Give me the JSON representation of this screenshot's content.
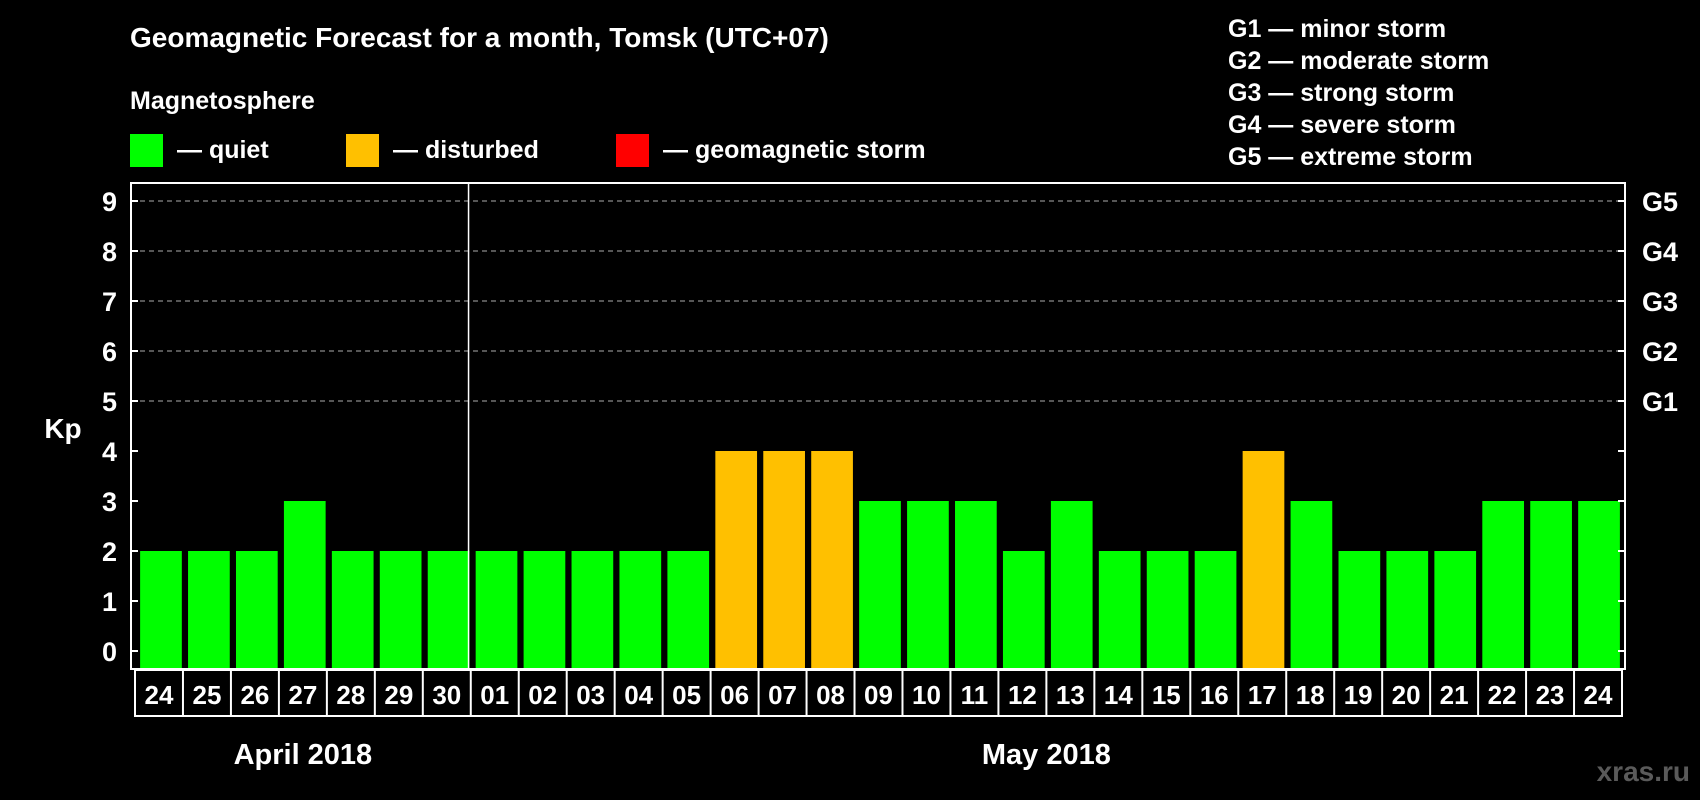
{
  "colors": {
    "background": "#000000",
    "quiet": "#00ff00",
    "disturbed": "#ffc000",
    "storm": "#ff0000",
    "text": "#ffffff",
    "watermark": "#5a5a5a"
  },
  "legend": {
    "heading": "Magnetosphere",
    "items": [
      {
        "label": "— quiet",
        "level": "quiet"
      },
      {
        "label": "— disturbed",
        "level": "disturbed"
      },
      {
        "label": "— geomagnetic storm",
        "level": "storm"
      }
    ]
  },
  "storm_scale": [
    "G1 — minor storm",
    "G2 — moderate storm",
    "G3 — strong storm",
    "G4 — severe storm",
    "G5 — extreme storm"
  ],
  "watermark": "xras.ru",
  "chart_data": {
    "type": "bar",
    "title": "Geomagnetic Forecast for a month, Tomsk (UTC+07)",
    "ylabel": "Kp",
    "ylim": [
      0,
      9
    ],
    "y_ticks": [
      "0",
      "1",
      "2",
      "3",
      "4",
      "5",
      "6",
      "7",
      "8",
      "9"
    ],
    "right_axis": [
      {
        "kp": 5,
        "label": "G1"
      },
      {
        "kp": 6,
        "label": "G2"
      },
      {
        "kp": 7,
        "label": "G3"
      },
      {
        "kp": 8,
        "label": "G4"
      },
      {
        "kp": 9,
        "label": "G5"
      }
    ],
    "grid": "dashed at Kp 5-9",
    "categories": [
      "24",
      "25",
      "26",
      "27",
      "28",
      "29",
      "30",
      "01",
      "02",
      "03",
      "04",
      "05",
      "06",
      "07",
      "08",
      "09",
      "10",
      "11",
      "12",
      "13",
      "14",
      "15",
      "16",
      "17",
      "18",
      "19",
      "20",
      "21",
      "22",
      "23",
      "24"
    ],
    "values": [
      2,
      2,
      2,
      3,
      2,
      2,
      2,
      2,
      2,
      2,
      2,
      2,
      4,
      4,
      4,
      3,
      3,
      3,
      2,
      3,
      2,
      2,
      2,
      4,
      3,
      2,
      2,
      2,
      3,
      3,
      3
    ],
    "levels": [
      "quiet",
      "quiet",
      "quiet",
      "quiet",
      "quiet",
      "quiet",
      "quiet",
      "quiet",
      "quiet",
      "quiet",
      "quiet",
      "quiet",
      "disturbed",
      "disturbed",
      "disturbed",
      "quiet",
      "quiet",
      "quiet",
      "quiet",
      "quiet",
      "quiet",
      "quiet",
      "quiet",
      "disturbed",
      "quiet",
      "quiet",
      "quiet",
      "quiet",
      "quiet",
      "quiet",
      "quiet"
    ],
    "months": [
      {
        "label": "April 2018",
        "start": 0,
        "count": 7
      },
      {
        "label": "May 2018",
        "start": 7,
        "count": 24
      }
    ]
  }
}
